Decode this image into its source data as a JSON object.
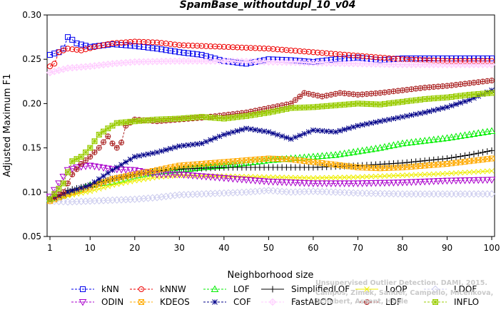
{
  "chart_data": {
    "type": "line",
    "title": "SpamBase_withoutdupl_10_v04",
    "xlabel": "Neighborhood size",
    "ylabel": "Adjusted Maximum F1",
    "xlim": [
      1,
      100
    ],
    "ylim": [
      0.05,
      0.3
    ],
    "xticks": [
      1,
      10,
      20,
      30,
      40,
      50,
      60,
      70,
      80,
      90,
      100
    ],
    "yticks": [
      "0.05",
      "0.10",
      "0.15",
      "0.20",
      "0.25",
      "0.30"
    ],
    "grid": false,
    "legend_position": "bottom",
    "series": [
      {
        "name": "kNN",
        "color": "#0000ee",
        "marker": "square",
        "dashed": true,
        "points": [
          [
            1,
            0.255
          ],
          [
            3,
            0.258
          ],
          [
            4,
            0.262
          ],
          [
            5,
            0.275
          ],
          [
            6,
            0.272
          ],
          [
            7,
            0.268
          ],
          [
            10,
            0.264
          ],
          [
            15,
            0.267
          ],
          [
            20,
            0.265
          ],
          [
            25,
            0.262
          ],
          [
            30,
            0.258
          ],
          [
            35,
            0.255
          ],
          [
            40,
            0.248
          ],
          [
            45,
            0.245
          ],
          [
            50,
            0.25
          ],
          [
            55,
            0.249
          ],
          [
            60,
            0.247
          ],
          [
            65,
            0.25
          ],
          [
            70,
            0.252
          ],
          [
            75,
            0.249
          ],
          [
            80,
            0.251
          ],
          [
            90,
            0.251
          ],
          [
            100,
            0.251
          ]
        ]
      },
      {
        "name": "kNNW",
        "color": "#ee0000",
        "marker": "circle",
        "dashed": true,
        "points": [
          [
            1,
            0.242
          ],
          [
            2,
            0.245
          ],
          [
            3,
            0.258
          ],
          [
            5,
            0.262
          ],
          [
            8,
            0.26
          ],
          [
            12,
            0.265
          ],
          [
            15,
            0.268
          ],
          [
            20,
            0.27
          ],
          [
            25,
            0.269
          ],
          [
            30,
            0.266
          ],
          [
            40,
            0.264
          ],
          [
            50,
            0.262
          ],
          [
            60,
            0.258
          ],
          [
            70,
            0.254
          ],
          [
            80,
            0.25
          ],
          [
            90,
            0.248
          ],
          [
            100,
            0.248
          ]
        ]
      },
      {
        "name": "LOF",
        "color": "#00ee00",
        "marker": "triangle-up",
        "dashed": true,
        "points": [
          [
            1,
            0.092
          ],
          [
            5,
            0.098
          ],
          [
            10,
            0.108
          ],
          [
            15,
            0.112
          ],
          [
            20,
            0.118
          ],
          [
            25,
            0.123
          ],
          [
            30,
            0.125
          ],
          [
            35,
            0.128
          ],
          [
            40,
            0.13
          ],
          [
            45,
            0.133
          ],
          [
            50,
            0.136
          ],
          [
            55,
            0.138
          ],
          [
            60,
            0.14
          ],
          [
            65,
            0.142
          ],
          [
            70,
            0.146
          ],
          [
            75,
            0.15
          ],
          [
            80,
            0.155
          ],
          [
            85,
            0.158
          ],
          [
            90,
            0.161
          ],
          [
            95,
            0.165
          ],
          [
            100,
            0.169
          ]
        ]
      },
      {
        "name": "SimplifiedLOF",
        "color": "#000000",
        "marker": "plus",
        "dashed": false,
        "points": [
          [
            1,
            0.092
          ],
          [
            5,
            0.102
          ],
          [
            10,
            0.108
          ],
          [
            15,
            0.115
          ],
          [
            20,
            0.12
          ],
          [
            25,
            0.124
          ],
          [
            30,
            0.126
          ],
          [
            40,
            0.128
          ],
          [
            50,
            0.128
          ],
          [
            60,
            0.128
          ],
          [
            70,
            0.13
          ],
          [
            80,
            0.133
          ],
          [
            90,
            0.138
          ],
          [
            95,
            0.142
          ],
          [
            100,
            0.147
          ]
        ]
      },
      {
        "name": "LoOP",
        "color": "#eeee00",
        "marker": "x",
        "dashed": false,
        "points": [
          [
            1,
            0.092
          ],
          [
            5,
            0.096
          ],
          [
            10,
            0.101
          ],
          [
            15,
            0.108
          ],
          [
            20,
            0.113
          ],
          [
            25,
            0.117
          ],
          [
            30,
            0.119
          ],
          [
            40,
            0.118
          ],
          [
            50,
            0.117
          ],
          [
            60,
            0.116
          ],
          [
            70,
            0.117
          ],
          [
            80,
            0.119
          ],
          [
            90,
            0.121
          ],
          [
            100,
            0.124
          ]
        ]
      },
      {
        "name": "LDOF",
        "color": "#ccccee",
        "marker": "diamond",
        "dashed": true,
        "points": [
          [
            1,
            0.09
          ],
          [
            5,
            0.089
          ],
          [
            10,
            0.09
          ],
          [
            15,
            0.091
          ],
          [
            20,
            0.092
          ],
          [
            25,
            0.094
          ],
          [
            30,
            0.097
          ],
          [
            35,
            0.098
          ],
          [
            40,
            0.099
          ],
          [
            45,
            0.1
          ],
          [
            50,
            0.102
          ],
          [
            55,
            0.1
          ],
          [
            60,
            0.101
          ],
          [
            70,
            0.099
          ],
          [
            80,
            0.098
          ],
          [
            90,
            0.098
          ],
          [
            100,
            0.098
          ]
        ]
      },
      {
        "name": "ODIN",
        "color": "#aa00cc",
        "marker": "triangle-down",
        "dashed": true,
        "points": [
          [
            1,
            0.095
          ],
          [
            3,
            0.11
          ],
          [
            5,
            0.125
          ],
          [
            7,
            0.128
          ],
          [
            10,
            0.13
          ],
          [
            15,
            0.126
          ],
          [
            20,
            0.125
          ],
          [
            25,
            0.12
          ],
          [
            30,
            0.12
          ],
          [
            35,
            0.118
          ],
          [
            40,
            0.116
          ],
          [
            50,
            0.112
          ],
          [
            60,
            0.11
          ],
          [
            70,
            0.11
          ],
          [
            80,
            0.111
          ],
          [
            90,
            0.113
          ],
          [
            100,
            0.114
          ]
        ]
      },
      {
        "name": "KDEOS",
        "color": "#ffaa00",
        "marker": "square-x",
        "dashed": true,
        "points": [
          [
            1,
            0.09
          ],
          [
            5,
            0.098
          ],
          [
            10,
            0.106
          ],
          [
            15,
            0.115
          ],
          [
            20,
            0.12
          ],
          [
            25,
            0.125
          ],
          [
            30,
            0.13
          ],
          [
            35,
            0.132
          ],
          [
            40,
            0.134
          ],
          [
            45,
            0.136
          ],
          [
            50,
            0.138
          ],
          [
            55,
            0.137
          ],
          [
            60,
            0.134
          ],
          [
            65,
            0.131
          ],
          [
            70,
            0.128
          ],
          [
            75,
            0.127
          ],
          [
            80,
            0.128
          ],
          [
            85,
            0.13
          ],
          [
            90,
            0.132
          ],
          [
            95,
            0.135
          ],
          [
            100,
            0.138
          ]
        ]
      },
      {
        "name": "COF",
        "color": "#000088",
        "marker": "asterisk",
        "dashed": true,
        "points": [
          [
            1,
            0.092
          ],
          [
            5,
            0.1
          ],
          [
            10,
            0.108
          ],
          [
            15,
            0.125
          ],
          [
            20,
            0.14
          ],
          [
            25,
            0.145
          ],
          [
            30,
            0.152
          ],
          [
            35,
            0.155
          ],
          [
            40,
            0.165
          ],
          [
            45,
            0.172
          ],
          [
            50,
            0.168
          ],
          [
            55,
            0.16
          ],
          [
            60,
            0.17
          ],
          [
            65,
            0.168
          ],
          [
            70,
            0.175
          ],
          [
            75,
            0.18
          ],
          [
            80,
            0.185
          ],
          [
            85,
            0.19
          ],
          [
            90,
            0.196
          ],
          [
            95,
            0.204
          ],
          [
            100,
            0.215
          ]
        ]
      },
      {
        "name": "FastABOD",
        "color": "#ffccff",
        "marker": "diamond-plus",
        "dashed": true,
        "points": [
          [
            1,
            0.235
          ],
          [
            5,
            0.24
          ],
          [
            10,
            0.242
          ],
          [
            15,
            0.245
          ],
          [
            20,
            0.247
          ],
          [
            30,
            0.248
          ],
          [
            40,
            0.248
          ],
          [
            50,
            0.247
          ],
          [
            60,
            0.246
          ],
          [
            70,
            0.245
          ],
          [
            80,
            0.244
          ],
          [
            90,
            0.244
          ],
          [
            100,
            0.244
          ]
        ]
      },
      {
        "name": "LDF",
        "color": "#aa2222",
        "marker": "circle-plus",
        "dashed": true,
        "points": [
          [
            1,
            0.092
          ],
          [
            4,
            0.1
          ],
          [
            6,
            0.12
          ],
          [
            8,
            0.132
          ],
          [
            10,
            0.14
          ],
          [
            12,
            0.15
          ],
          [
            14,
            0.163
          ],
          [
            15,
            0.155
          ],
          [
            16,
            0.15
          ],
          [
            17,
            0.156
          ],
          [
            18,
            0.175
          ],
          [
            20,
            0.182
          ],
          [
            25,
            0.18
          ],
          [
            30,
            0.182
          ],
          [
            35,
            0.184
          ],
          [
            40,
            0.187
          ],
          [
            45,
            0.19
          ],
          [
            50,
            0.195
          ],
          [
            55,
            0.2
          ],
          [
            58,
            0.212
          ],
          [
            62,
            0.208
          ],
          [
            66,
            0.212
          ],
          [
            70,
            0.21
          ],
          [
            75,
            0.212
          ],
          [
            80,
            0.215
          ],
          [
            85,
            0.218
          ],
          [
            90,
            0.22
          ],
          [
            95,
            0.223
          ],
          [
            100,
            0.226
          ]
        ]
      },
      {
        "name": "INFLO",
        "color": "#99cc00",
        "marker": "star-box",
        "dashed": true,
        "points": [
          [
            1,
            0.092
          ],
          [
            4,
            0.11
          ],
          [
            6,
            0.135
          ],
          [
            8,
            0.14
          ],
          [
            10,
            0.15
          ],
          [
            12,
            0.165
          ],
          [
            14,
            0.172
          ],
          [
            16,
            0.178
          ],
          [
            20,
            0.18
          ],
          [
            25,
            0.182
          ],
          [
            30,
            0.183
          ],
          [
            35,
            0.185
          ],
          [
            40,
            0.183
          ],
          [
            45,
            0.186
          ],
          [
            50,
            0.19
          ],
          [
            55,
            0.195
          ],
          [
            60,
            0.196
          ],
          [
            65,
            0.198
          ],
          [
            70,
            0.2
          ],
          [
            75,
            0.199
          ],
          [
            80,
            0.202
          ],
          [
            85,
            0.205
          ],
          [
            90,
            0.207
          ],
          [
            95,
            0.21
          ],
          [
            100,
            0.212
          ]
        ]
      }
    ]
  },
  "attribution": {
    "line1": "Campos, Zimek, Sander, Campello, Micenkova, Schubert, Assent, Houle",
    "line2": "Unsupervised Outlier Detection. DAMI, 2015."
  }
}
